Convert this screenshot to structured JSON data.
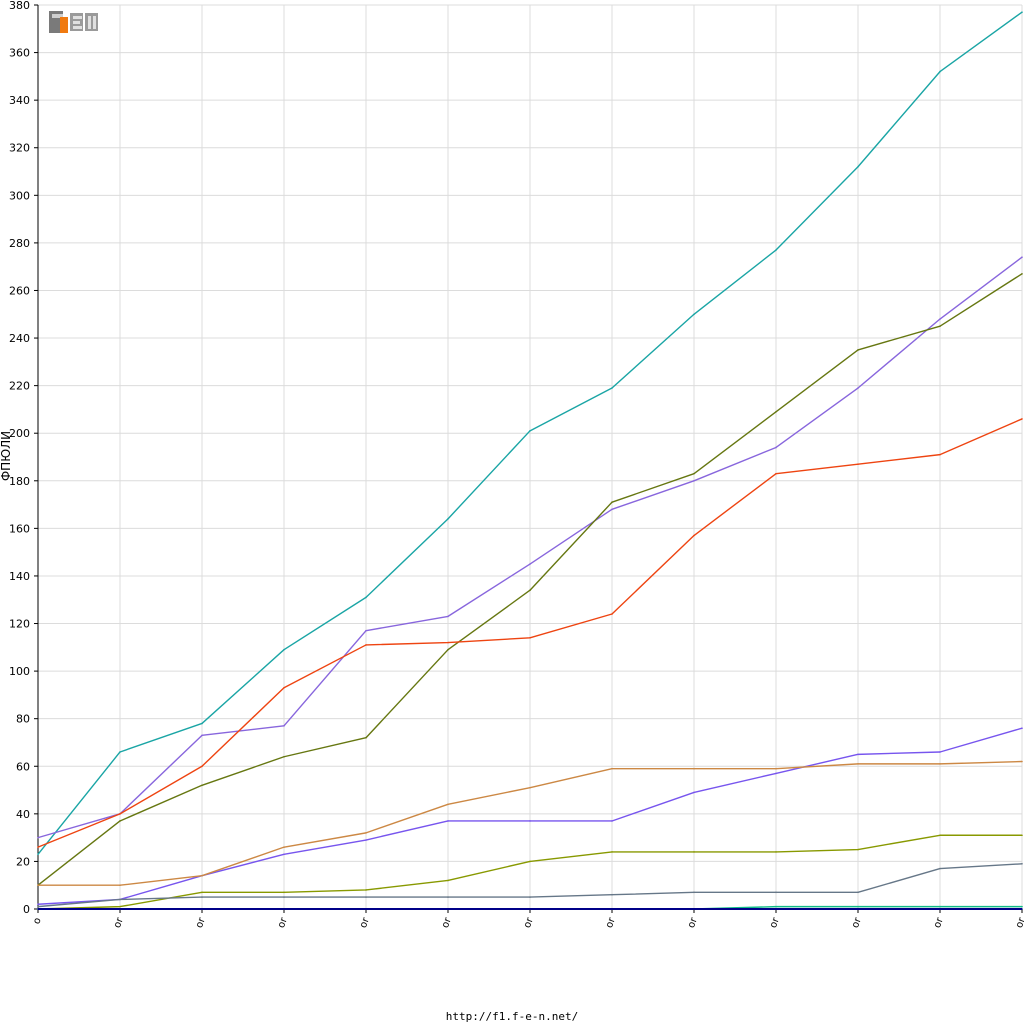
{
  "chart_data": {
    "type": "line",
    "title": "",
    "xlabel": "",
    "ylabel": "ФПЮЛИ",
    "ylim": [
      0,
      380
    ],
    "yticks": [
      0,
      20,
      40,
      60,
      80,
      100,
      120,
      140,
      160,
      180,
      200,
      220,
      240,
      260,
      280,
      300,
      320,
      340,
      360,
      380
    ],
    "categories": [
      "o",
      "or",
      "or",
      "or",
      "or",
      "or",
      "or",
      "or",
      "or",
      "or",
      "or",
      "or",
      "or"
    ],
    "grid": true,
    "series": [
      {
        "color": "#1aa5a5",
        "values": [
          23,
          66,
          78,
          109,
          131,
          164,
          201,
          219,
          250,
          277,
          312,
          352,
          377
        ]
      },
      {
        "color": "#8866dd",
        "values": [
          30,
          40,
          73,
          77,
          117,
          123,
          145,
          168,
          180,
          194,
          219,
          248,
          274
        ]
      },
      {
        "color": "#667711",
        "values": [
          10,
          37,
          52,
          64,
          72,
          109,
          134,
          171,
          183,
          209,
          235,
          245,
          267
        ]
      },
      {
        "color": "#ee4411",
        "values": [
          26,
          40,
          60,
          93,
          111,
          112,
          114,
          124,
          157,
          183,
          187,
          191,
          206
        ]
      },
      {
        "color": "#7755ee",
        "values": [
          2,
          4,
          14,
          23,
          29,
          37,
          37,
          37,
          49,
          57,
          65,
          66,
          76
        ]
      },
      {
        "color": "#cc8844",
        "values": [
          10,
          10,
          14,
          26,
          32,
          44,
          51,
          59,
          59,
          59,
          61,
          61,
          62
        ]
      },
      {
        "color": "#889900",
        "values": [
          0,
          1,
          7,
          7,
          8,
          12,
          20,
          24,
          24,
          24,
          25,
          31,
          31
        ]
      },
      {
        "color": "#667788",
        "values": [
          1,
          4,
          5,
          5,
          5,
          5,
          5,
          6,
          7,
          7,
          7,
          17,
          19
        ]
      },
      {
        "color": "#11bb88",
        "values": [
          0,
          0,
          0,
          0,
          0,
          0,
          0,
          0,
          0,
          1,
          1,
          1,
          1
        ]
      },
      {
        "color": "#000088",
        "values": [
          0,
          0,
          0,
          0,
          0,
          0,
          0,
          0,
          0,
          0,
          0,
          0,
          0
        ]
      }
    ]
  },
  "logo_text": "F1EN",
  "footer_url": "http://f1.f-e-n.net/"
}
